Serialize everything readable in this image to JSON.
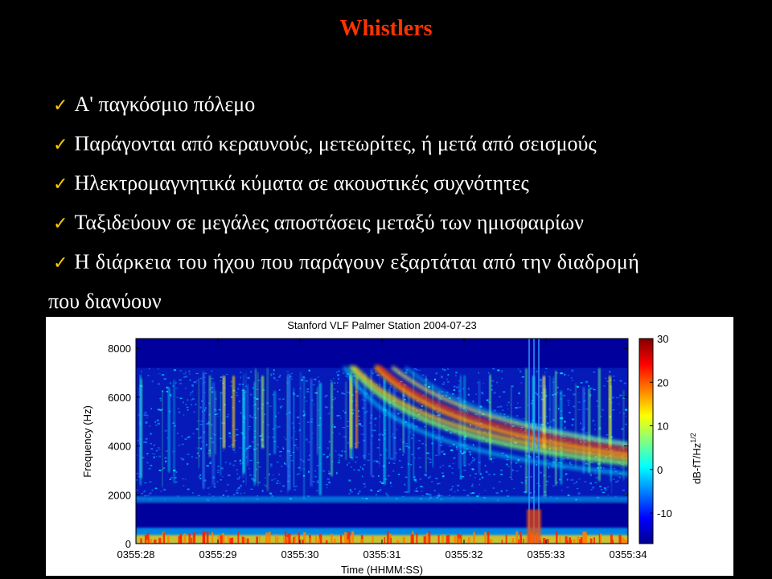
{
  "slide": {
    "title": "Whistlers",
    "bullets": [
      "Α' παγκόσμιο πόλεμο",
      "Παράγονται από κεραυνούς, μετεωρίτες, ή μετά από σεισμούς",
      "Ηλεκτρομαγνητικά κύματα σε ακουστικές συχνότητες",
      "Ταξιδεύουν σε μεγάλες αποστάσεις μεταξύ των ημισφαιρίων"
    ],
    "bullet_last": {
      "line1": "Η διάρκεια του ήχου που παράγουν εξαρτάται από την διαδρομή",
      "line2": "που διανύουν"
    },
    "check_glyph": "✓",
    "colors": {
      "background": "#000000",
      "title": "#ff3300",
      "text": "#ffffff",
      "check": "#ffcc00"
    }
  },
  "chart_data": {
    "type": "heatmap",
    "title": "Stanford VLF  Palmer Station  2004-07-23",
    "xlabel": "Time (HHMM:SS)",
    "ylabel": "Frequency (Hz)",
    "colorbar_label": "dB-fT/Hz",
    "colorbar_label_sup": "1/2",
    "x_ticks": [
      "0355:28",
      "0355:29",
      "0355:30",
      "0355:31",
      "0355:32",
      "0355:33",
      "0355:34"
    ],
    "y_ticks": [
      0,
      2000,
      4000,
      6000,
      8000
    ],
    "ylim": [
      0,
      8400
    ],
    "colorbar_ticks": [
      -10,
      0,
      10,
      20,
      30
    ],
    "clim": [
      -17,
      30
    ],
    "colormap": "jet"
  }
}
